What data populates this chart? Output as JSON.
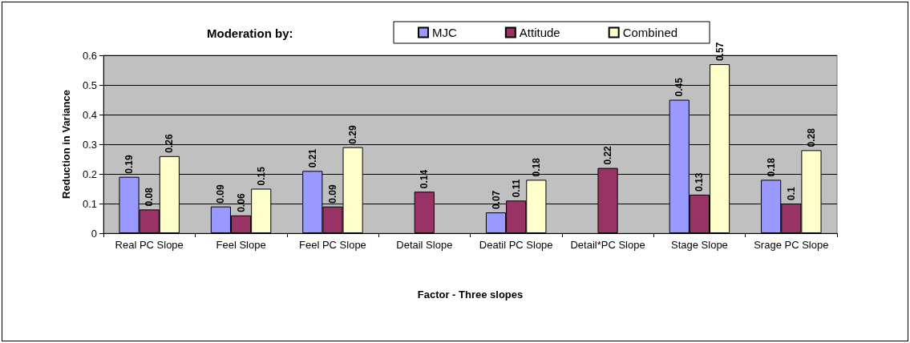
{
  "chart_data": {
    "type": "bar",
    "legend_title": "Moderation by:",
    "xlabel": "Factor - Three slopes",
    "ylabel": "Reduction in Variance",
    "categories": [
      "Real PC Slope",
      "Feel Slope",
      "Feel PC Slope",
      "Detail Slope",
      "Deatil PC Slope",
      "Detail*PC Slope",
      "Stage Slope",
      "Srage PC Slope"
    ],
    "series": [
      {
        "name": "MJC",
        "color": "#9999ff",
        "values": [
          0.19,
          0.09,
          0.21,
          null,
          0.07,
          null,
          0.45,
          0.18
        ]
      },
      {
        "name": "Attitude",
        "color": "#993366",
        "values": [
          0.08,
          0.06,
          0.09,
          0.14,
          0.11,
          0.22,
          0.13,
          0.1
        ]
      },
      {
        "name": "Combined",
        "color": "#ffffcc",
        "values": [
          0.26,
          0.15,
          0.29,
          null,
          0.18,
          null,
          0.57,
          0.28
        ]
      }
    ],
    "ylim": [
      0,
      0.6
    ],
    "yticks": [
      0,
      0.1,
      0.2,
      0.3,
      0.4,
      0.5,
      0.6
    ],
    "grid": "y",
    "legend": "top",
    "data_labels": true
  }
}
